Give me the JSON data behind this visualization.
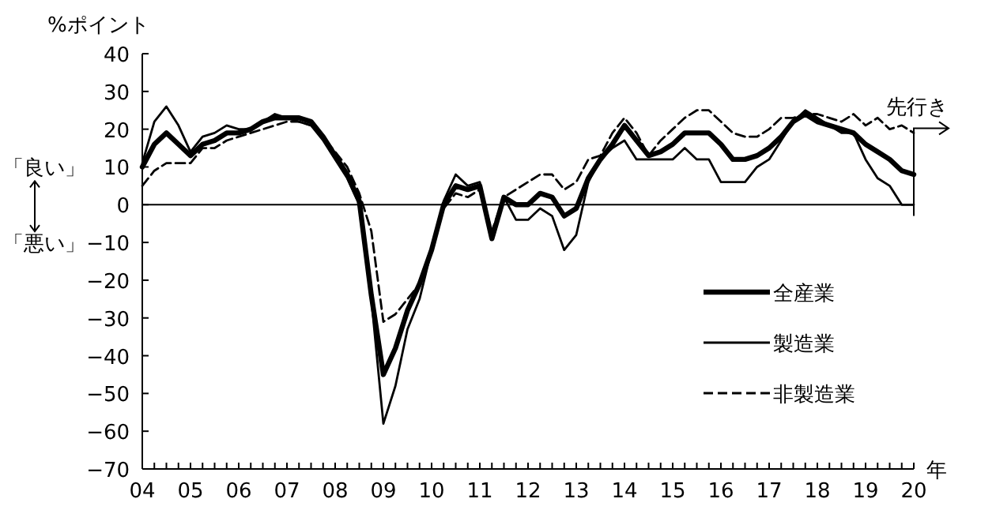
{
  "chart_data": {
    "type": "line",
    "ylabel": "%ポイント",
    "xlabel": "年",
    "x": [
      2004,
      2004.25,
      2004.5,
      2004.75,
      2005,
      2005.25,
      2005.5,
      2005.75,
      2006,
      2006.25,
      2006.5,
      2006.75,
      2007,
      2007.25,
      2007.5,
      2007.75,
      2008,
      2008.25,
      2008.5,
      2008.75,
      2009,
      2009.25,
      2009.5,
      2009.75,
      2010,
      2010.25,
      2010.5,
      2010.75,
      2011,
      2011.25,
      2011.5,
      2011.75,
      2012,
      2012.25,
      2012.5,
      2012.75,
      2013,
      2013.25,
      2013.5,
      2013.75,
      2014,
      2014.25,
      2014.5,
      2014.75,
      2015,
      2015.25,
      2015.5,
      2015.75,
      2016,
      2016.25,
      2016.5,
      2016.75,
      2017,
      2017.25,
      2017.5,
      2017.75,
      2018,
      2018.25,
      2018.5,
      2018.75,
      2019,
      2019.25,
      2019.5,
      2019.75,
      2020
    ],
    "series": [
      {
        "name": "全産業",
        "color": "#000000",
        "line_style": "solid",
        "values": [
          10,
          16,
          19,
          16,
          13,
          16,
          17,
          19,
          19,
          20,
          22,
          23,
          23,
          23,
          22,
          18,
          13,
          8,
          1,
          -24,
          -45,
          -38,
          -28,
          -21,
          -12,
          0,
          5,
          4,
          5,
          -9,
          2,
          0,
          0,
          3,
          2,
          -3,
          -1,
          7,
          12,
          16,
          21,
          17,
          13,
          14,
          16,
          19,
          19,
          19,
          16,
          12,
          12,
          13,
          15,
          18,
          22,
          24,
          22,
          21,
          20,
          19,
          16,
          14,
          12,
          9,
          8
        ]
      },
      {
        "name": "製造業",
        "color": "#000000",
        "line_style": "solid",
        "values": [
          11,
          22,
          26,
          21,
          14,
          18,
          19,
          21,
          20,
          20,
          22,
          24,
          23,
          22,
          21,
          17,
          12,
          7,
          0,
          -25,
          -58,
          -48,
          -33,
          -25,
          -12,
          1,
          8,
          5,
          6,
          -9,
          2,
          -4,
          -4,
          -1,
          -3,
          -12,
          -8,
          6,
          12,
          15,
          17,
          12,
          12,
          12,
          12,
          15,
          12,
          12,
          6,
          6,
          6,
          10,
          12,
          17,
          22,
          25,
          23,
          21,
          19,
          19,
          12,
          7,
          5,
          0,
          0
        ]
      },
      {
        "name": "非製造業",
        "color": "#000000",
        "line_style": "dashed",
        "values": [
          5,
          9,
          11,
          11,
          11,
          15,
          15,
          17,
          18,
          19,
          20,
          21,
          22,
          22,
          21,
          18,
          14,
          10,
          3,
          -7,
          -31,
          -29,
          -25,
          -21,
          -12,
          -1,
          3,
          2,
          4,
          -7,
          2,
          4,
          6,
          8,
          8,
          4,
          6,
          12,
          13,
          19,
          23,
          19,
          13,
          17,
          20,
          23,
          25,
          25,
          22,
          19,
          18,
          18,
          20,
          23,
          23,
          24,
          24,
          23,
          22,
          24,
          21,
          23,
          20,
          21,
          19
        ]
      }
    ],
    "xlim": [
      2004,
      2020
    ],
    "xticks": [
      {
        "value": 2004,
        "label": "04"
      },
      {
        "value": 2004.25,
        "label": null
      },
      {
        "value": 2004.5,
        "label": null
      },
      {
        "value": 2004.75,
        "label": null
      },
      {
        "value": 2005,
        "label": "05"
      },
      {
        "value": 2005.25,
        "label": null
      },
      {
        "value": 2005.5,
        "label": null
      },
      {
        "value": 2005.75,
        "label": null
      },
      {
        "value": 2006,
        "label": "06"
      },
      {
        "value": 2006.25,
        "label": null
      },
      {
        "value": 2006.5,
        "label": null
      },
      {
        "value": 2006.75,
        "label": null
      },
      {
        "value": 2007,
        "label": "07"
      },
      {
        "value": 2007.25,
        "label": null
      },
      {
        "value": 2007.5,
        "label": null
      },
      {
        "value": 2007.75,
        "label": null
      },
      {
        "value": 2008,
        "label": "08"
      },
      {
        "value": 2008.25,
        "label": null
      },
      {
        "value": 2008.5,
        "label": null
      },
      {
        "value": 2008.75,
        "label": null
      },
      {
        "value": 2009,
        "label": "09"
      },
      {
        "value": 2009.25,
        "label": null
      },
      {
        "value": 2009.5,
        "label": null
      },
      {
        "value": 2009.75,
        "label": null
      },
      {
        "value": 2010,
        "label": "10"
      },
      {
        "value": 2010.25,
        "label": null
      },
      {
        "value": 2010.5,
        "label": null
      },
      {
        "value": 2010.75,
        "label": null
      },
      {
        "value": 2011,
        "label": "11"
      },
      {
        "value": 2011.25,
        "label": null
      },
      {
        "value": 2011.5,
        "label": null
      },
      {
        "value": 2011.75,
        "label": null
      },
      {
        "value": 2012,
        "label": "12"
      },
      {
        "value": 2012.25,
        "label": null
      },
      {
        "value": 2012.5,
        "label": null
      },
      {
        "value": 2012.75,
        "label": null
      },
      {
        "value": 2013,
        "label": "13"
      },
      {
        "value": 2013.25,
        "label": null
      },
      {
        "value": 2013.5,
        "label": null
      },
      {
        "value": 2013.75,
        "label": null
      },
      {
        "value": 2014,
        "label": "14"
      },
      {
        "value": 2014.25,
        "label": null
      },
      {
        "value": 2014.5,
        "label": null
      },
      {
        "value": 2014.75,
        "label": null
      },
      {
        "value": 2015,
        "label": "15"
      },
      {
        "value": 2015.25,
        "label": null
      },
      {
        "value": 2015.5,
        "label": null
      },
      {
        "value": 2015.75,
        "label": null
      },
      {
        "value": 2016,
        "label": "16"
      },
      {
        "value": 2016.25,
        "label": null
      },
      {
        "value": 2016.5,
        "label": null
      },
      {
        "value": 2016.75,
        "label": null
      },
      {
        "value": 2017,
        "label": "17"
      },
      {
        "value": 2017.25,
        "label": null
      },
      {
        "value": 2017.5,
        "label": null
      },
      {
        "value": 2017.75,
        "label": null
      },
      {
        "value": 2018,
        "label": "18"
      },
      {
        "value": 2018.25,
        "label": null
      },
      {
        "value": 2018.5,
        "label": null
      },
      {
        "value": 2018.75,
        "label": null
      },
      {
        "value": 2019,
        "label": "19"
      },
      {
        "value": 2019.25,
        "label": null
      },
      {
        "value": 2019.5,
        "label": null
      },
      {
        "value": 2019.75,
        "label": null
      },
      {
        "value": 2020,
        "label": "20"
      }
    ],
    "ylim": [
      -70,
      40
    ],
    "yticks": [
      -70,
      -60,
      -50,
      -40,
      -30,
      -20,
      -10,
      0,
      10,
      20,
      30,
      40
    ],
    "ref_lines": [
      {
        "axis": "y",
        "value": 0
      }
    ],
    "annotations": [
      "「良い」",
      "「悪い」",
      {
        "text": "先行き",
        "x": 2020,
        "y": 19
      }
    ],
    "legend": "bottom right",
    "grid": false
  }
}
